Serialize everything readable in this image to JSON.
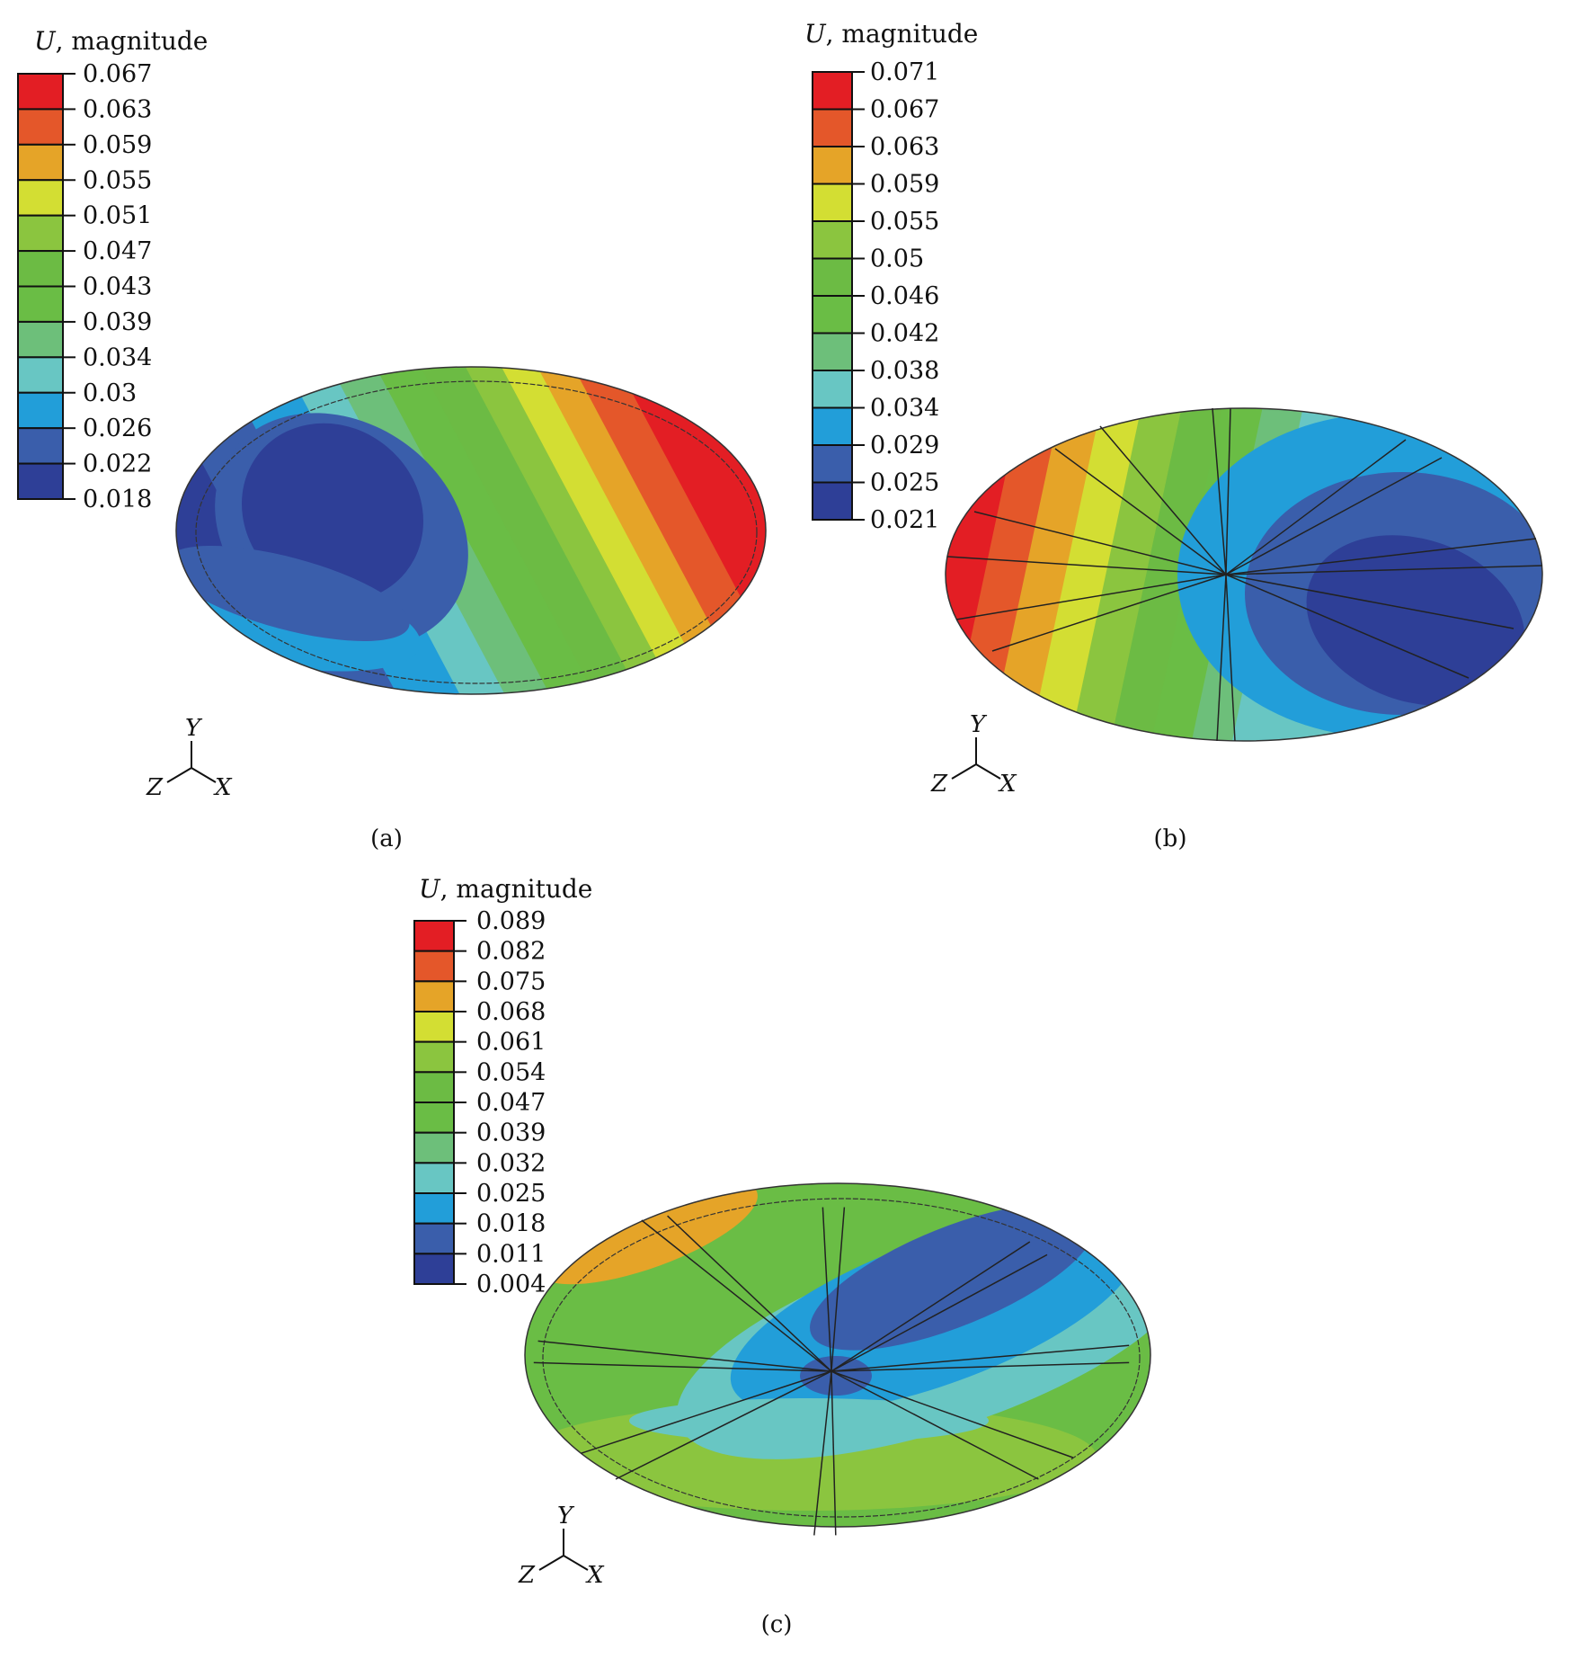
{
  "colors": [
    "#2e3f97",
    "#3a5eab",
    "#229ed9",
    "#68c6c3",
    "#6dbf7a",
    "#6abd45",
    "#6cbb44",
    "#8bc53f",
    "#d3de33",
    "#e5a428",
    "#e4572a",
    "#e31e24"
  ],
  "chart_data": [
    {
      "type": "heatmap",
      "panel_label": "(a)",
      "title_var": "U",
      "title_rest": ", magnitude",
      "legend_levels": [
        "0.067",
        "0.063",
        "0.059",
        "0.055",
        "0.051",
        "0.047",
        "0.043",
        "0.039",
        "0.034",
        "0.03",
        "0.026",
        "0.022",
        "0.018"
      ],
      "range": [
        0.018,
        0.067
      ],
      "axes": {
        "y": "Y",
        "z": "Z",
        "x": "X"
      }
    },
    {
      "type": "heatmap",
      "panel_label": "(b)",
      "title_var": "U",
      "title_rest": ", magnitude",
      "legend_levels": [
        "0.071",
        "0.067",
        "0.063",
        "0.059",
        "0.055",
        "0.05",
        "0.046",
        "0.042",
        "0.038",
        "0.034",
        "0.029",
        "0.025",
        "0.021"
      ],
      "range": [
        0.021,
        0.071
      ],
      "axes": {
        "y": "Y",
        "z": "Z",
        "x": "X"
      }
    },
    {
      "type": "heatmap",
      "panel_label": "(c)",
      "title_var": "U",
      "title_rest": ", magnitude",
      "legend_levels": [
        "0.089",
        "0.082",
        "0.075",
        "0.068",
        "0.061",
        "0.054",
        "0.047",
        "0.039",
        "0.032",
        "0.025",
        "0.018",
        "0.011",
        "0.004"
      ],
      "range": [
        0.004,
        0.089
      ],
      "axes": {
        "y": "Y",
        "z": "Z",
        "x": "X"
      }
    }
  ]
}
